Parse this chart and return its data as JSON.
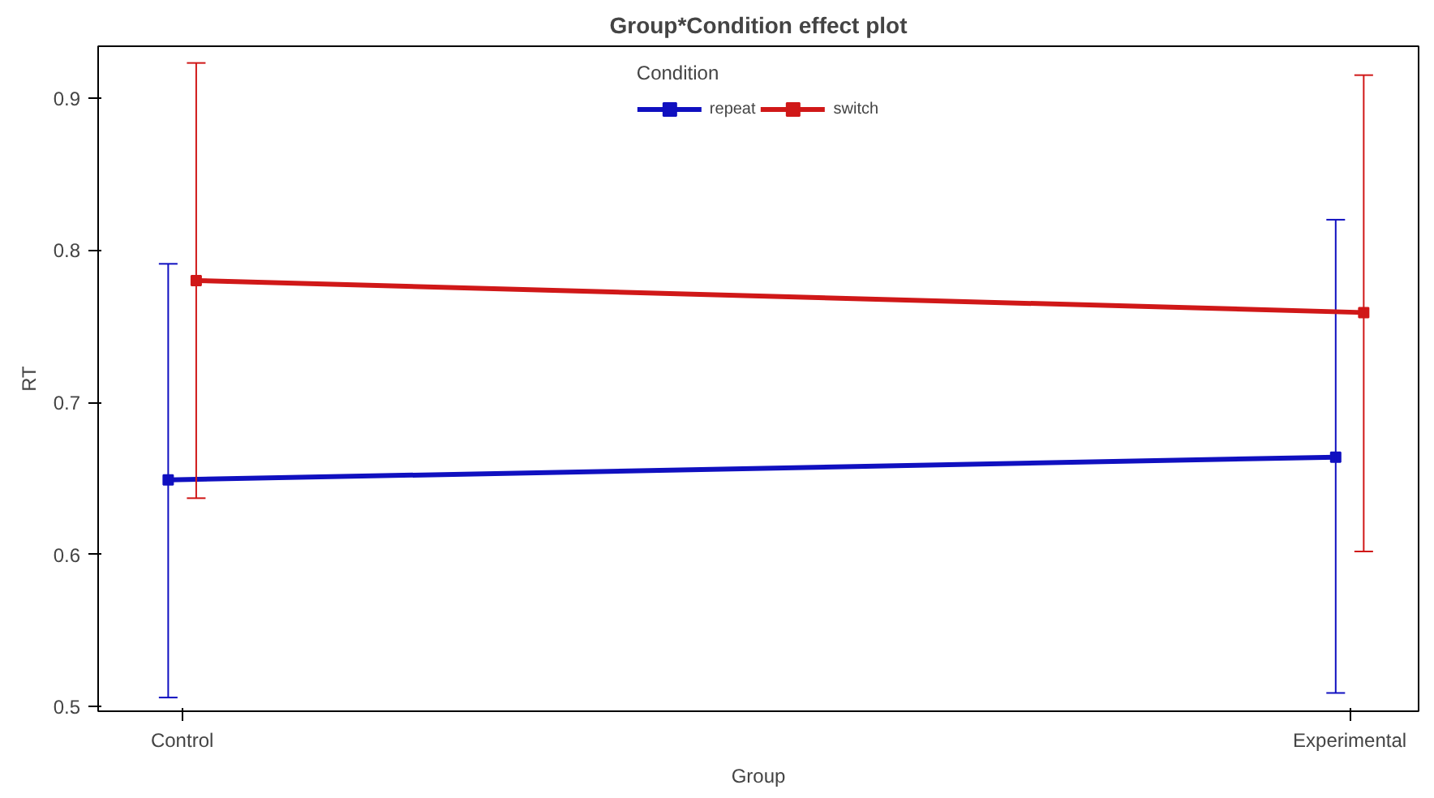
{
  "chart_data": {
    "type": "line",
    "title": "Group*Condition effect plot",
    "xlabel": "Group",
    "ylabel": "RT",
    "legend_title": "Condition",
    "categories": [
      "Control",
      "Experimental"
    ],
    "series": [
      {
        "name": "repeat",
        "color": "#1010c0",
        "values": [
          0.649,
          0.664
        ],
        "errors": [
          [
            0.506,
            0.791
          ],
          [
            0.509,
            0.82
          ]
        ]
      },
      {
        "name": "switch",
        "color": "#d01818",
        "values": [
          0.78,
          0.759
        ],
        "errors": [
          [
            0.637,
            0.923
          ],
          [
            0.602,
            0.915
          ]
        ]
      }
    ],
    "ylim": [
      0.497,
      0.934
    ],
    "yticks": [
      0.5,
      0.6,
      0.7,
      0.8,
      0.9
    ],
    "grid": false,
    "legend": "top",
    "marker": "square",
    "line_style": "solid"
  }
}
